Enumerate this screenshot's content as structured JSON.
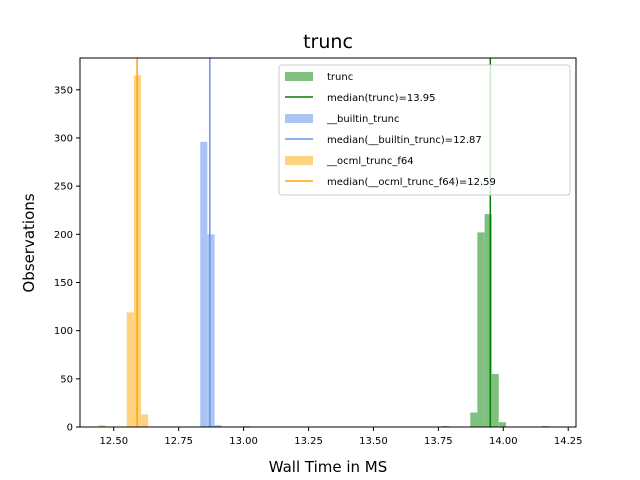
{
  "chart_data": {
    "type": "histogram",
    "title": "trunc",
    "xlabel": "Wall Time in MS",
    "ylabel": "Observations",
    "xlim": [
      12.37,
      14.28
    ],
    "ylim": [
      0,
      383
    ],
    "xticks": [
      12.5,
      12.75,
      13.0,
      13.25,
      13.5,
      13.75,
      14.0,
      14.25
    ],
    "xtick_labels": [
      "12.50",
      "12.75",
      "13.00",
      "13.25",
      "13.50",
      "13.75",
      "14.00",
      "14.25"
    ],
    "yticks": [
      0,
      50,
      100,
      150,
      200,
      250,
      300,
      350
    ],
    "ytick_labels": [
      "0",
      "50",
      "100",
      "150",
      "200",
      "250",
      "300",
      "350"
    ],
    "grid": false,
    "legend_position": "top-right",
    "bin_width": 0.0275,
    "series": [
      {
        "name": "trunc",
        "kind": "hist",
        "color": "#7fbf7f",
        "bins": [
          {
            "x0": 13.763,
            "count": 1
          },
          {
            "x0": 13.873,
            "count": 15
          },
          {
            "x0": 13.9,
            "count": 202
          },
          {
            "x0": 13.928,
            "count": 221
          },
          {
            "x0": 13.955,
            "count": 55
          },
          {
            "x0": 13.983,
            "count": 5
          },
          {
            "x0": 14.148,
            "count": 1
          }
        ]
      },
      {
        "name": "median(trunc)=13.95",
        "kind": "median",
        "color": "#008000",
        "value": 13.95
      },
      {
        "name": "__builtin_trunc",
        "kind": "hist",
        "color": "#aac5f4",
        "bins": [
          {
            "x0": 12.833,
            "count": 296
          },
          {
            "x0": 12.861,
            "count": 200
          },
          {
            "x0": 12.888,
            "count": 2
          },
          {
            "x0": 12.998,
            "count": 1
          }
        ]
      },
      {
        "name": "median(__builtin_trunc)=12.87",
        "kind": "median",
        "color": "#6495ed",
        "value": 12.87
      },
      {
        "name": "__ocml_trunc_f64",
        "kind": "hist",
        "color": "#ffd280",
        "bins": [
          {
            "x0": 12.44,
            "count": 2
          },
          {
            "x0": 12.55,
            "count": 119
          },
          {
            "x0": 12.578,
            "count": 365
          },
          {
            "x0": 12.605,
            "count": 13
          }
        ]
      },
      {
        "name": "median(__ocml_trunc_f64)=12.59",
        "kind": "median",
        "color": "#ffa500",
        "value": 12.59
      }
    ]
  }
}
